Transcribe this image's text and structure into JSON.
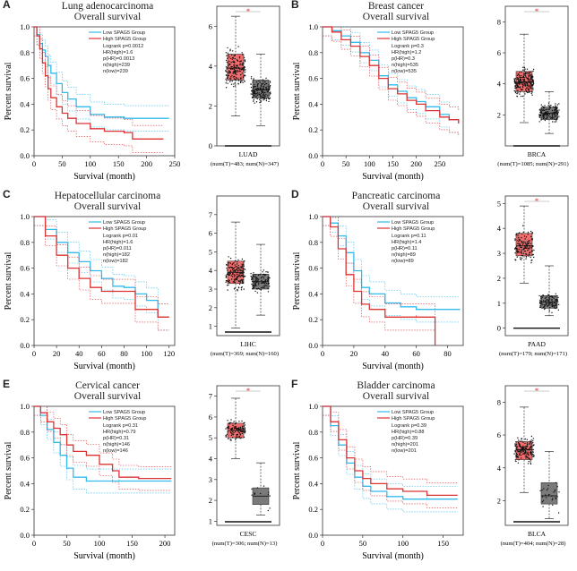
{
  "chart_data": [
    {
      "letter": "A",
      "title": "Lung adenocarcinoma",
      "subtitle": "Overall survival",
      "type": "line",
      "xlabel": "Survival (month)",
      "ylabel": "Percent survival",
      "xlim": [
        0,
        250
      ],
      "xticks": [
        0,
        50,
        100,
        150,
        200,
        250
      ],
      "ylim": [
        0,
        1.0
      ],
      "yticks": [
        0.0,
        0.2,
        0.4,
        0.6,
        0.8,
        1.0
      ],
      "legend": {
        "low": "Low SPAG5 Group",
        "high": "High SPAG5 Group"
      },
      "stats": [
        "Logrank p=0.0012",
        "HR(high)=1.6",
        "p(HR)=0.0013",
        "n(high)=239",
        "n(low)=239"
      ],
      "series": [
        {
          "name": "Low SPAG5 Group",
          "color": "#33bbee",
          "x": [
            0,
            5,
            10,
            15,
            20,
            25,
            30,
            40,
            50,
            60,
            75,
            100,
            125,
            160,
            240
          ],
          "y": [
            1.0,
            0.94,
            0.87,
            0.82,
            0.77,
            0.7,
            0.64,
            0.56,
            0.49,
            0.44,
            0.38,
            0.32,
            0.3,
            0.29,
            0.29
          ]
        },
        {
          "name": "High SPAG5 Group",
          "color": "#dd3333",
          "x": [
            0,
            5,
            10,
            15,
            20,
            25,
            30,
            40,
            50,
            60,
            75,
            100,
            125,
            160,
            175,
            230
          ],
          "y": [
            1.0,
            0.93,
            0.83,
            0.72,
            0.62,
            0.52,
            0.45,
            0.38,
            0.33,
            0.29,
            0.25,
            0.21,
            0.19,
            0.18,
            0.13,
            0.13
          ]
        }
      ],
      "box": {
        "ylim": [
          0,
          7
        ],
        "yticks": [
          0,
          2,
          4,
          6
        ],
        "label": "LUAD",
        "counts": "(num(T)=483; num(N)=347)",
        "tumor": {
          "min": 1.5,
          "q1": 3.3,
          "median": 3.9,
          "q3": 4.6,
          "max": 6.5,
          "n": 180
        },
        "normal": {
          "min": 1.0,
          "q1": 2.4,
          "median": 2.8,
          "q3": 3.3,
          "max": 4.6,
          "n": 170
        },
        "marker": "*"
      }
    },
    {
      "letter": "B",
      "title": "Breast cancer",
      "subtitle": "Overall survival",
      "type": "line",
      "xlabel": "Survival (month)",
      "ylabel": "Percent survival",
      "xlim": [
        0,
        300
      ],
      "xticks": [
        0,
        50,
        100,
        150,
        200,
        250
      ],
      "ylim": [
        0,
        1.0
      ],
      "yticks": [
        0.0,
        0.2,
        0.4,
        0.6,
        0.8,
        1.0
      ],
      "legend": {
        "low": "Low SPAG5 Group",
        "high": "High SPAG5 Group"
      },
      "stats": [
        "Logrank p=0.3",
        "HR(high)=1.2",
        "p(HR)=0.3",
        "n(high)=535",
        "n(low)=535"
      ],
      "series": [
        {
          "name": "Low SPAG5 Group",
          "color": "#33bbee",
          "x": [
            0,
            20,
            40,
            60,
            80,
            100,
            120,
            140,
            160,
            180,
            200,
            220,
            250,
            270,
            290
          ],
          "y": [
            1.0,
            0.97,
            0.93,
            0.88,
            0.8,
            0.74,
            0.62,
            0.55,
            0.5,
            0.45,
            0.42,
            0.38,
            0.32,
            0.28,
            0.25
          ]
        },
        {
          "name": "High SPAG5 Group",
          "color": "#dd3333",
          "x": [
            0,
            20,
            40,
            60,
            80,
            100,
            120,
            140,
            160,
            180,
            200,
            220,
            250,
            270,
            290
          ],
          "y": [
            1.0,
            0.96,
            0.9,
            0.85,
            0.77,
            0.7,
            0.6,
            0.52,
            0.48,
            0.43,
            0.4,
            0.35,
            0.3,
            0.28,
            0.25
          ]
        }
      ],
      "box": {
        "ylim": [
          0,
          9
        ],
        "yticks": [
          2,
          4,
          6,
          8
        ],
        "label": "BRCA",
        "counts": "(num(T)=1085; num(N)=291)",
        "tumor": {
          "min": 1.5,
          "q1": 3.5,
          "median": 4.1,
          "q3": 4.8,
          "max": 7.2,
          "n": 220
        },
        "normal": {
          "min": 0.8,
          "q1": 1.7,
          "median": 2.1,
          "q3": 2.5,
          "max": 3.5,
          "n": 140
        },
        "marker": "*"
      }
    },
    {
      "letter": "C",
      "title": "Hepatocellular carcinoma",
      "subtitle": "Overall survival",
      "type": "line",
      "xlabel": "Survival (month)",
      "ylabel": "Percent survival",
      "xlim": [
        0,
        125
      ],
      "xticks": [
        0,
        20,
        40,
        60,
        80,
        100,
        120
      ],
      "ylim": [
        0,
        1.0
      ],
      "yticks": [
        0.0,
        0.2,
        0.4,
        0.6,
        0.8,
        1.0
      ],
      "legend": {
        "low": "Low SPAG5 Group",
        "high": "High SPAG5 Group"
      },
      "stats": [
        "Logrank p=0.01",
        "HR(high)=1.6",
        "p(HR)=0.011",
        "n(high)=182",
        "n(low)=182"
      ],
      "series": [
        {
          "name": "Low SPAG5 Group",
          "color": "#33bbee",
          "x": [
            0,
            10,
            20,
            30,
            40,
            50,
            60,
            70,
            80,
            90,
            100,
            110,
            120
          ],
          "y": [
            1.0,
            0.9,
            0.8,
            0.72,
            0.65,
            0.58,
            0.52,
            0.46,
            0.45,
            0.4,
            0.35,
            0.22,
            0.22
          ]
        },
        {
          "name": "High SPAG5 Group",
          "color": "#dd3333",
          "x": [
            0,
            10,
            20,
            30,
            40,
            50,
            60,
            70,
            80,
            90,
            100,
            110,
            120
          ],
          "y": [
            1.0,
            0.85,
            0.7,
            0.6,
            0.52,
            0.45,
            0.42,
            0.42,
            0.42,
            0.28,
            0.28,
            0.22,
            0.22
          ]
        }
      ],
      "box": {
        "ylim": [
          0.5,
          8
        ],
        "yticks": [
          1,
          2,
          3,
          4,
          5,
          6,
          7
        ],
        "label": "LIHC",
        "counts": "(num(T)=369; num(N)=160)",
        "tumor": {
          "min": 0.9,
          "q1": 3.3,
          "median": 3.9,
          "q3": 4.5,
          "max": 6.6,
          "n": 170
        },
        "normal": {
          "min": 1.6,
          "q1": 3.0,
          "median": 3.4,
          "q3": 3.8,
          "max": 5.4,
          "n": 110
        },
        "marker": ""
      }
    },
    {
      "letter": "D",
      "title": "Pancreatic carcinoma",
      "subtitle": "Overall survival",
      "type": "line",
      "xlabel": "Survival (month)",
      "ylabel": "Percent survival",
      "xlim": [
        0,
        90
      ],
      "xticks": [
        0,
        20,
        40,
        60,
        80
      ],
      "ylim": [
        0,
        1.0
      ],
      "yticks": [
        0.0,
        0.2,
        0.4,
        0.6,
        0.8,
        1.0
      ],
      "legend": {
        "low": "Low SPAG5 Group",
        "high": "High SPAG5 Group"
      },
      "stats": [
        "Logrank p=0.11",
        "HR(high)=1.4",
        "p(HR)=0.11",
        "n(high)=89",
        "n(low)=89"
      ],
      "series": [
        {
          "name": "Low SPAG5 Group",
          "color": "#33bbee",
          "x": [
            0,
            5,
            10,
            15,
            20,
            25,
            30,
            40,
            50,
            60,
            70,
            88
          ],
          "y": [
            1.0,
            0.95,
            0.85,
            0.72,
            0.58,
            0.45,
            0.4,
            0.33,
            0.3,
            0.28,
            0.28,
            0.28
          ]
        },
        {
          "name": "High SPAG5 Group",
          "color": "#dd3333",
          "x": [
            0,
            5,
            10,
            15,
            20,
            25,
            30,
            40,
            50,
            60,
            70,
            72
          ],
          "y": [
            1.0,
            0.92,
            0.75,
            0.55,
            0.42,
            0.32,
            0.28,
            0.22,
            0.22,
            0.22,
            0.22,
            0.0
          ]
        }
      ],
      "box": {
        "ylim": [
          -0.3,
          5.3
        ],
        "yticks": [
          0,
          1,
          2,
          3,
          4,
          5
        ],
        "label": "PAAD",
        "counts": "(num(T)=179; num(N)=171)",
        "tumor": {
          "min": 1.8,
          "q1": 2.9,
          "median": 3.3,
          "q3": 3.8,
          "max": 4.9,
          "n": 140
        },
        "normal": {
          "min": 0.5,
          "q1": 0.8,
          "median": 1.05,
          "q3": 1.3,
          "max": 2.5,
          "n": 110
        },
        "marker": "*"
      }
    },
    {
      "letter": "E",
      "title": "Cervical cancer",
      "subtitle": "Overall survival",
      "type": "line",
      "xlabel": "Survival (month)",
      "ylabel": "Percent survival",
      "xlim": [
        0,
        215
      ],
      "xticks": [
        0,
        50,
        100,
        150,
        200
      ],
      "ylim": [
        0,
        1.0
      ],
      "yticks": [
        0.0,
        0.2,
        0.4,
        0.6,
        0.8,
        1.0
      ],
      "legend": {
        "low": "Low SPAG5 Group",
        "high": "High SPAG5 Group"
      },
      "stats": [
        "Logrank p=0.31",
        "HR(high)=0.79",
        "p(HR)=0.31",
        "n(high)=146",
        "n(low)=146"
      ],
      "series": [
        {
          "name": "Low SPAG5 Group",
          "color": "#33bbee",
          "x": [
            0,
            10,
            20,
            30,
            40,
            50,
            60,
            80,
            100,
            130,
            160,
            210
          ],
          "y": [
            1.0,
            0.93,
            0.82,
            0.72,
            0.62,
            0.52,
            0.45,
            0.42,
            0.42,
            0.42,
            0.42,
            0.42
          ]
        },
        {
          "name": "High SPAG5 Group",
          "color": "#dd3333",
          "x": [
            0,
            10,
            20,
            30,
            40,
            50,
            60,
            80,
            100,
            120,
            130,
            160,
            210
          ],
          "y": [
            1.0,
            0.95,
            0.88,
            0.83,
            0.78,
            0.7,
            0.65,
            0.62,
            0.55,
            0.5,
            0.45,
            0.44,
            0.44
          ]
        }
      ],
      "box": {
        "ylim": [
          0.8,
          7.5
        ],
        "yticks": [
          1,
          2,
          3,
          4,
          5,
          6,
          7
        ],
        "label": "CESC",
        "counts": "(num(T)=306; num(N)=13)",
        "tumor": {
          "min": 4.0,
          "q1": 5.0,
          "median": 5.35,
          "q3": 5.7,
          "max": 6.9,
          "n": 120
        },
        "normal": {
          "min": 1.3,
          "q1": 1.8,
          "median": 2.2,
          "q3": 2.6,
          "max": 3.8,
          "n": 13
        },
        "marker": "*"
      }
    },
    {
      "letter": "F",
      "title": "Bladder carcinoma",
      "subtitle": "Overall survival",
      "type": "line",
      "xlabel": "Survival (month)",
      "ylabel": "Percent survival",
      "xlim": [
        0,
        175
      ],
      "xticks": [
        0,
        50,
        100,
        150
      ],
      "ylim": [
        0,
        1.0
      ],
      "yticks": [
        0.0,
        0.2,
        0.4,
        0.6,
        0.8,
        1.0
      ],
      "legend": {
        "low": "Low SPAG5 Group",
        "high": "High SPAG5 Group"
      },
      "stats": [
        "Logrank p=0.39",
        "HR(high)=0.88",
        "p(HR)=0.39",
        "n(high)=201",
        "n(low)=201"
      ],
      "series": [
        {
          "name": "Low SPAG5 Group",
          "color": "#33bbee",
          "x": [
            0,
            10,
            20,
            30,
            40,
            50,
            60,
            80,
            100,
            130,
            168
          ],
          "y": [
            1.0,
            0.85,
            0.7,
            0.56,
            0.45,
            0.38,
            0.34,
            0.3,
            0.28,
            0.28,
            0.28
          ]
        },
        {
          "name": "High SPAG5 Group",
          "color": "#dd3333",
          "x": [
            0,
            10,
            20,
            30,
            40,
            50,
            60,
            80,
            100,
            130,
            168
          ],
          "y": [
            1.0,
            0.88,
            0.74,
            0.6,
            0.5,
            0.44,
            0.4,
            0.36,
            0.34,
            0.31,
            0.31
          ]
        }
      ],
      "box": {
        "ylim": [
          0.5,
          9
        ],
        "yticks": [
          2,
          4,
          6,
          8
        ],
        "label": "BLCA",
        "counts": "(num(T)=404; num(N)=28)",
        "tumor": {
          "min": 2.5,
          "q1": 4.5,
          "median": 5.1,
          "q3": 5.6,
          "max": 7.7,
          "n": 170
        },
        "normal": {
          "min": 0.9,
          "q1": 1.8,
          "median": 2.3,
          "q3": 3.1,
          "max": 5.0,
          "n": 28
        },
        "marker": "*"
      }
    }
  ],
  "colors": {
    "low": "#33bbee",
    "high": "#dd3333",
    "tumor_box": "#f26d6d",
    "normal_box": "#7a7a7a"
  }
}
